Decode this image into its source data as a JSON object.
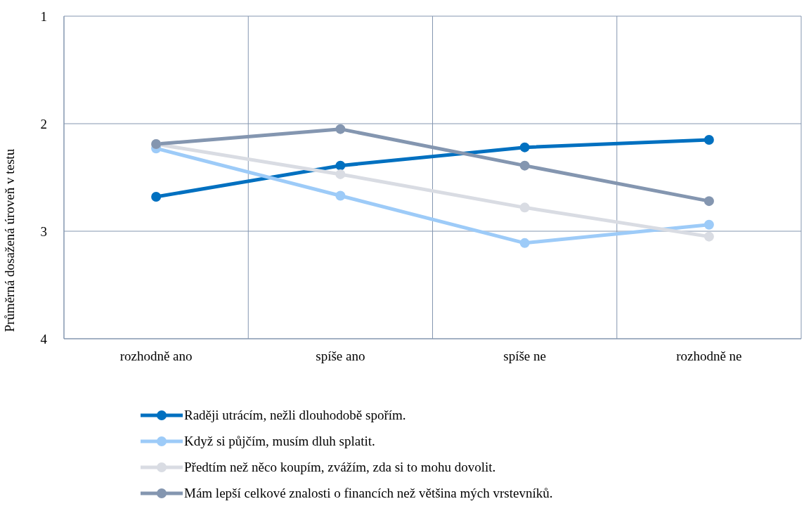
{
  "chart_data": {
    "type": "line",
    "ylabel": "Průměrná dosažená úroveň v testu",
    "categories": [
      "rozhodně ano",
      "spíše ano",
      "spíše ne",
      "rozhodně ne"
    ],
    "series": [
      {
        "name": "Raději utrácím, nežli dlouhodobě spořím.",
        "color": "#0070c0",
        "values": [
          2.68,
          2.39,
          2.22,
          2.15
        ]
      },
      {
        "name": "Když si půjčím, musím dluh splatit.",
        "color": "#9dcbf8",
        "values": [
          2.23,
          2.67,
          3.11,
          2.94
        ]
      },
      {
        "name": "Předtím než něco koupím, zvážím, zda si to mohu dovolit.",
        "color": "#d9dce3",
        "values": [
          2.19,
          2.47,
          2.78,
          3.05
        ]
      },
      {
        "name": "Mám lepší celkové znalosti o financích než většina mých vrstevníků.",
        "color": "#8496b0",
        "values": [
          2.19,
          2.05,
          2.39,
          2.72
        ]
      }
    ],
    "ylim": [
      4,
      1
    ],
    "yticks": [
      1,
      2,
      3,
      4
    ],
    "grid": true,
    "legend": "bottom",
    "marker": "circle",
    "line_style": "solid"
  }
}
